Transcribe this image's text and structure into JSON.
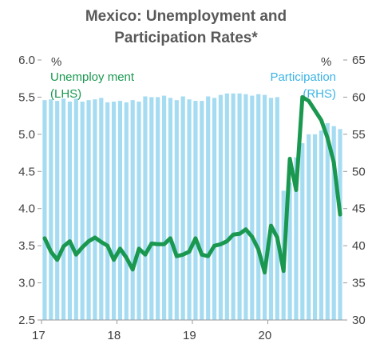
{
  "chart_data": {
    "type": "bar+line",
    "title_lines": [
      "Mexico: Unemployment  and",
      "Participation Rates*"
    ],
    "left_axis": {
      "unit": "%",
      "ylim": [
        2.5,
        6.0
      ],
      "ticks": [
        "2.5",
        "3.0",
        "3.5",
        "4.0",
        "4.5",
        "5.0",
        "5.5",
        "6.0"
      ]
    },
    "right_axis": {
      "unit": "%",
      "ylim": [
        30,
        65
      ],
      "ticks": [
        "30",
        "35",
        "40",
        "45",
        "50",
        "55",
        "60",
        "65"
      ]
    },
    "x_axis": {
      "tick_labels": [
        "17",
        "18",
        "19",
        "20"
      ],
      "tick_months": [
        0,
        12,
        24,
        36
      ],
      "start": "2017-01",
      "end": "2020-12"
    },
    "series": [
      {
        "name": "Unemploy ment",
        "name2": "(LHS)",
        "type": "line",
        "axis": "left",
        "color": "#1a9850",
        "values": [
          3.6,
          3.42,
          3.31,
          3.49,
          3.56,
          3.38,
          3.48,
          3.56,
          3.61,
          3.55,
          3.5,
          3.31,
          3.46,
          3.34,
          3.18,
          3.46,
          3.38,
          3.53,
          3.52,
          3.52,
          3.6,
          3.36,
          3.38,
          3.42,
          3.6,
          3.38,
          3.36,
          3.5,
          3.52,
          3.56,
          3.65,
          3.66,
          3.72,
          3.62,
          3.45,
          3.14,
          3.77,
          3.61,
          3.16,
          4.67,
          4.25,
          5.5,
          5.45,
          5.32,
          5.19,
          4.95,
          4.62,
          3.92
        ]
      },
      {
        "name": "Participation",
        "name2": "(RHS)",
        "type": "bar",
        "axis": "right",
        "color": "#a6dcf2",
        "values": [
          59.6,
          59.7,
          59.5,
          59.8,
          59.4,
          59.8,
          59.4,
          59.6,
          59.7,
          59.9,
          59.3,
          59.4,
          59.5,
          59.3,
          59.6,
          59.4,
          60.1,
          60.0,
          60.0,
          60.2,
          59.9,
          59.6,
          60.1,
          59.7,
          59.5,
          59.5,
          60.1,
          59.9,
          60.3,
          60.5,
          60.5,
          60.5,
          60.4,
          60.2,
          60.4,
          60.3,
          59.9,
          60.0,
          47.4,
          48.5,
          51.9,
          53.8,
          55.0,
          55.0,
          55.5,
          56.5,
          56.1,
          55.7
        ]
      }
    ],
    "grid": false
  }
}
